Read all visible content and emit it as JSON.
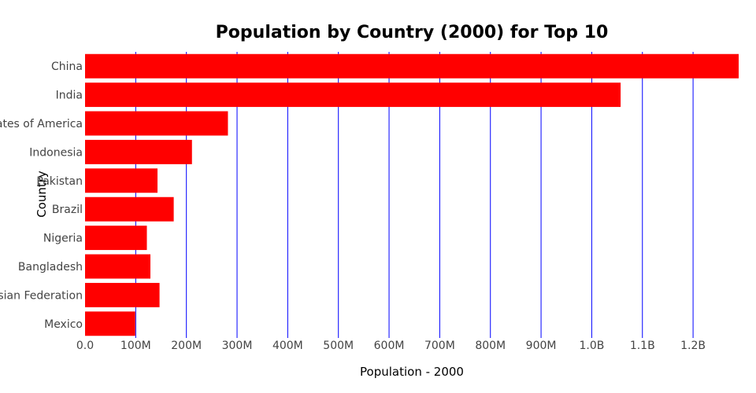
{
  "chart_data": {
    "type": "bar",
    "orientation": "horizontal",
    "title": "Population by Country (2000) for Top 10",
    "xlabel": "Population - 2000",
    "ylabel": "Country",
    "categories": [
      "China",
      "India",
      "United States of America",
      "Indonesia",
      "Pakistan",
      "Brazil",
      "Nigeria",
      "Bangladesh",
      "Russian Federation",
      "Mexico"
    ],
    "values": [
      1290000000,
      1057000000,
      282000000,
      211000000,
      143000000,
      175000000,
      122000000,
      129000000,
      147000000,
      99000000
    ],
    "xlim": [
      0,
      1290000000
    ],
    "xticks": [
      0,
      100000000,
      200000000,
      300000000,
      400000000,
      500000000,
      600000000,
      700000000,
      800000000,
      900000000,
      1000000000,
      1100000000,
      1200000000
    ],
    "xtick_labels": [
      "0.0",
      "100M",
      "200M",
      "300M",
      "400M",
      "500M",
      "600M",
      "700M",
      "800M",
      "900M",
      "1.0B",
      "1.1B",
      "1.2B"
    ],
    "grid": true,
    "bar_color": "#ff0000",
    "grid_color": "#0000ff"
  }
}
